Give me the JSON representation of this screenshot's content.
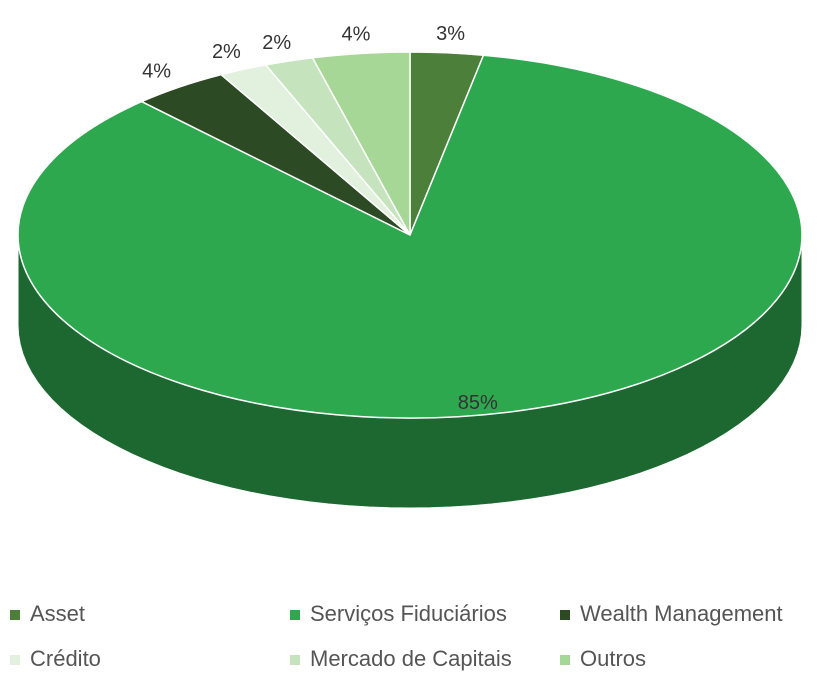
{
  "chart_data": {
    "type": "pie",
    "categories": [
      "Asset",
      "Serviços Fiduciários",
      "Wealth Management",
      "Crédito",
      "Mercado de Capitais",
      "Outros"
    ],
    "values": [
      3,
      85,
      4,
      2,
      2,
      4
    ],
    "value_labels": [
      "3%",
      "85%",
      "4%",
      "2%",
      "2%",
      "4%"
    ],
    "colors": [
      "#4b7f3a",
      "#2ea84f",
      "#2c4a24",
      "#e2f0de",
      "#c5e4bd",
      "#a6d796"
    ]
  }
}
